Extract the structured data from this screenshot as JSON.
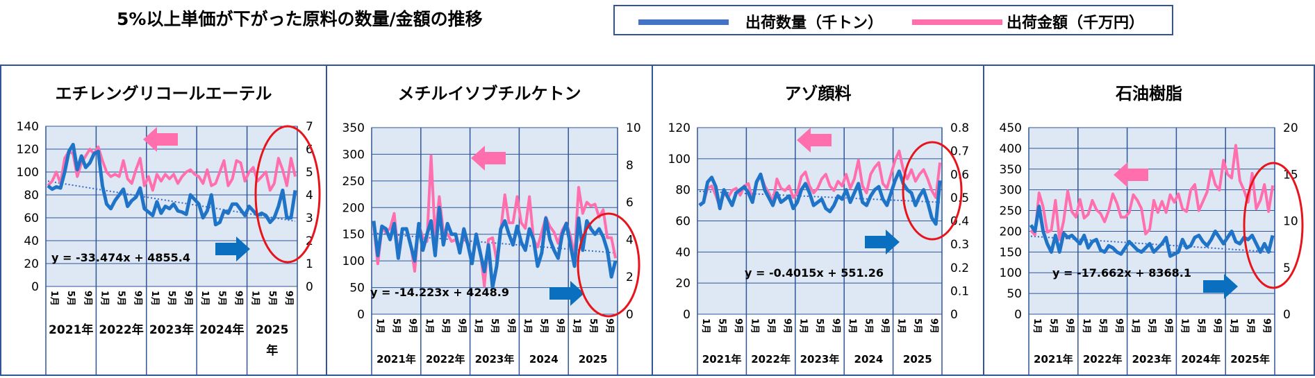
{
  "title": "5%以上単価が下がった原料の数量/金額の推移",
  "colors": {
    "qty": "#1f74c8",
    "amt": "#ff6fae",
    "plot_bg": "#dde8f4",
    "grid": "#2f5597",
    "trend": "#3366cc",
    "circle": "#e8141b",
    "arrow_pink": "#ff6fae",
    "arrow_blue": "#0b6fbf",
    "frame": "#2f5597"
  },
  "legend": [
    {
      "label": "出荷数量（千トン）",
      "color": "#4472c4"
    },
    {
      "label": "出荷金額（千万円）",
      "color": "#ff6fae"
    }
  ],
  "chart_data": [
    {
      "title": "エチレングリコールエーテル",
      "type": "line",
      "ylim_left": [
        0,
        140
      ],
      "yticks_left": [
        0,
        20,
        40,
        60,
        80,
        100,
        120,
        140
      ],
      "ylim_right": [
        0,
        7
      ],
      "yticks_right": [
        0,
        1,
        2,
        3,
        4,
        5,
        6,
        7
      ],
      "month_labels": [
        "1月",
        "5月",
        "9月"
      ],
      "year_labels": [
        "2021年",
        "2022年",
        "2023年",
        "2024年",
        "2025年"
      ],
      "equation": "y = -33.474x + 4855.4",
      "trend": [
        92,
        57
      ],
      "series": [
        {
          "name": "出荷数量（千トン）",
          "axis": "left",
          "values": [
            88,
            85,
            87,
            86,
            100,
            118,
            124,
            102,
            114,
            104,
            108,
            116,
            118,
            88,
            72,
            68,
            75,
            80,
            85,
            70,
            75,
            78,
            86,
            68,
            65,
            62,
            74,
            64,
            70,
            68,
            72,
            66,
            65,
            63,
            80,
            76,
            72,
            60,
            66,
            80,
            54,
            56,
            66,
            64,
            72,
            72,
            67,
            62,
            70,
            66,
            62,
            64,
            62,
            56,
            60,
            70,
            84,
            60,
            60,
            84
          ]
        },
        {
          "name": "出荷金額（千万円）",
          "axis": "right",
          "values": [
            4.4,
            4.6,
            5.0,
            4.5,
            5.6,
            5.9,
            5.8,
            4.8,
            5.4,
            5.7,
            6.0,
            5.8,
            6.1,
            5.5,
            5.0,
            4.8,
            4.9,
            4.8,
            5.5,
            4.7,
            4.5,
            5.1,
            5.6,
            4.4,
            4.8,
            4.2,
            4.9,
            4.6,
            4.9,
            4.7,
            4.9,
            4.5,
            4.8,
            5.0,
            5.1,
            4.9,
            4.8,
            4.5,
            5.1,
            4.4,
            4.5,
            5.0,
            5.5,
            4.4,
            4.7,
            5.5,
            5.4,
            4.6,
            5.0,
            5.2,
            4.6,
            4.8,
            5.0,
            4.2,
            4.5,
            5.6,
            5.1,
            4.4,
            5.6,
            4.8
          ]
        }
      ]
    },
    {
      "title": "メチルイソブチルケトン",
      "type": "line",
      "ylim_left": [
        0,
        350
      ],
      "yticks_left": [
        0,
        50,
        100,
        150,
        200,
        250,
        300,
        350
      ],
      "ylim_right": [
        0,
        10
      ],
      "yticks_right": [
        0,
        2,
        4,
        6,
        8,
        10
      ],
      "month_labels": [
        "1月",
        "5月",
        "9月"
      ],
      "year_labels": [
        "2021年",
        "2022年",
        "2023年",
        "2024",
        "2025"
      ],
      "equation": "y = -14.223x + 4248.9",
      "trend": [
        152,
        115
      ],
      "series": [
        {
          "name": "出荷数量（千トン）",
          "axis": "left",
          "values": [
            175,
            110,
            165,
            160,
            140,
            170,
            105,
            160,
            160,
            130,
            100,
            170,
            120,
            150,
            175,
            110,
            200,
            130,
            170,
            150,
            150,
            115,
            160,
            130,
            95,
            150,
            115,
            80,
            130,
            50,
            90,
            160,
            175,
            150,
            130,
            165,
            135,
            120,
            160,
            140,
            90,
            115,
            180,
            140,
            120,
            105,
            150,
            170,
            130,
            90,
            180,
            120,
            175,
            160,
            150,
            160,
            145,
            120,
            70,
            100
          ]
        },
        {
          "name": "出荷金額（千万円）",
          "axis": "right",
          "values": [
            4.8,
            2.7,
            4.6,
            4.4,
            4.6,
            5.4,
            3.2,
            4.5,
            4.6,
            3.8,
            2.3,
            4.8,
            4.1,
            3.9,
            8.5,
            4.1,
            6.3,
            4.4,
            4.3,
            3.9,
            4.0,
            3.4,
            4.2,
            3.7,
            2.9,
            4.0,
            3.4,
            1.5,
            4.0,
            4.1,
            2.9,
            4.5,
            6.4,
            4.9,
            4.9,
            6.3,
            4.9,
            4.6,
            6.3,
            4.0,
            3.6,
            4.4,
            5.2,
            4.7,
            4.4,
            3.8,
            4.5,
            4.9,
            4.2,
            3.1,
            6.8,
            5.4,
            6.0,
            5.8,
            5.9,
            5.2,
            5.6,
            4.1,
            4.1,
            3.0
          ]
        }
      ]
    },
    {
      "title": "アゾ顔料",
      "type": "line",
      "ylim_left": [
        0,
        120
      ],
      "yticks_left": [
        0,
        20,
        40,
        60,
        80,
        100,
        120
      ],
      "ylim_right": [
        0,
        0.8
      ],
      "yticks_right": [
        0,
        0.1,
        0.2,
        0.3,
        0.4,
        0.5,
        0.6,
        0.7,
        0.8
      ],
      "month_labels": [
        "1月",
        "5月",
        "9月"
      ],
      "year_labels": [
        "2021年",
        "2022年",
        "2023年",
        "2024",
        "2025"
      ],
      "equation": "y = -0.4015x + 551.26",
      "trend": [
        79,
        72
      ],
      "series": [
        {
          "name": "出荷数量（千トン）",
          "axis": "left",
          "values": [
            70,
            72,
            85,
            88,
            82,
            68,
            80,
            75,
            70,
            78,
            80,
            82,
            78,
            72,
            85,
            90,
            80,
            75,
            70,
            78,
            72,
            74,
            76,
            68,
            72,
            80,
            84,
            78,
            70,
            72,
            74,
            68,
            66,
            70,
            76,
            74,
            80,
            72,
            78,
            84,
            72,
            70,
            76,
            80,
            82,
            74,
            70,
            78,
            86,
            92,
            84,
            80,
            78,
            70,
            76,
            80,
            72,
            62,
            58,
            86
          ]
        },
        {
          "name": "出荷金額（千万円）",
          "axis": "right",
          "values": [
            0.47,
            0.48,
            0.54,
            0.55,
            0.51,
            0.46,
            0.52,
            0.5,
            0.53,
            0.54,
            0.51,
            0.55,
            0.56,
            0.49,
            0.57,
            0.6,
            0.55,
            0.52,
            0.48,
            0.58,
            0.54,
            0.53,
            0.55,
            0.5,
            0.52,
            0.59,
            0.61,
            0.55,
            0.52,
            0.54,
            0.58,
            0.6,
            0.55,
            0.53,
            0.57,
            0.55,
            0.6,
            0.54,
            0.58,
            0.66,
            0.55,
            0.52,
            0.6,
            0.63,
            0.65,
            0.56,
            0.54,
            0.6,
            0.66,
            0.7,
            0.62,
            0.58,
            0.62,
            0.57,
            0.6,
            0.62,
            0.58,
            0.53,
            0.5,
            0.65
          ]
        }
      ]
    },
    {
      "title": "石油樹脂",
      "type": "line",
      "ylim_left": [
        0,
        450
      ],
      "yticks_left": [
        0,
        50,
        100,
        150,
        200,
        250,
        300,
        350,
        400,
        450
      ],
      "ylim_right": [
        0,
        20
      ],
      "yticks_right": [
        0,
        5,
        10,
        15,
        20
      ],
      "month_labels": [
        "1月",
        "5月",
        "9月"
      ],
      "year_labels": [
        "2021年",
        "2022年",
        "2023年",
        "2024年",
        "2025年"
      ],
      "equation": "y = -17.662x + 8368.1",
      "trend": [
        188,
        150
      ],
      "series": [
        {
          "name": "出荷数量（千トン）",
          "axis": "left",
          "values": [
            215,
            200,
            260,
            200,
            170,
            150,
            190,
            150,
            195,
            185,
            190,
            180,
            170,
            190,
            160,
            175,
            180,
            155,
            150,
            165,
            160,
            150,
            145,
            160,
            175,
            165,
            155,
            150,
            160,
            170,
            150,
            160,
            170,
            185,
            140,
            145,
            150,
            180,
            160,
            165,
            185,
            190,
            175,
            165,
            180,
            200,
            185,
            170,
            185,
            200,
            175,
            170,
            185,
            180,
            190,
            170,
            150,
            170,
            150,
            190
          ]
        },
        {
          "name": "出荷金額（千万円）",
          "axis": "right",
          "values": [
            9.0,
            8.5,
            13.0,
            11.5,
            8.8,
            9.0,
            12.2,
            8.0,
            10.0,
            13.2,
            11.0,
            10.4,
            12.3,
            10.3,
            10.7,
            12.2,
            11.2,
            10.8,
            9.9,
            11.1,
            12.9,
            11.9,
            10.4,
            10.4,
            10.9,
            12.8,
            12.2,
            11.3,
            8.6,
            9.1,
            12.2,
            10.9,
            12.1,
            10.9,
            12.8,
            12.0,
            12.9,
            11.3,
            11.0,
            13.3,
            13.9,
            11.1,
            12.1,
            13.1,
            15.5,
            13.9,
            13.3,
            16.5,
            15.0,
            14.6,
            18.1,
            14.3,
            13.3,
            12.0,
            15.1,
            11.3,
            12.2,
            13.9,
            11.0,
            13.8
          ]
        }
      ]
    }
  ]
}
